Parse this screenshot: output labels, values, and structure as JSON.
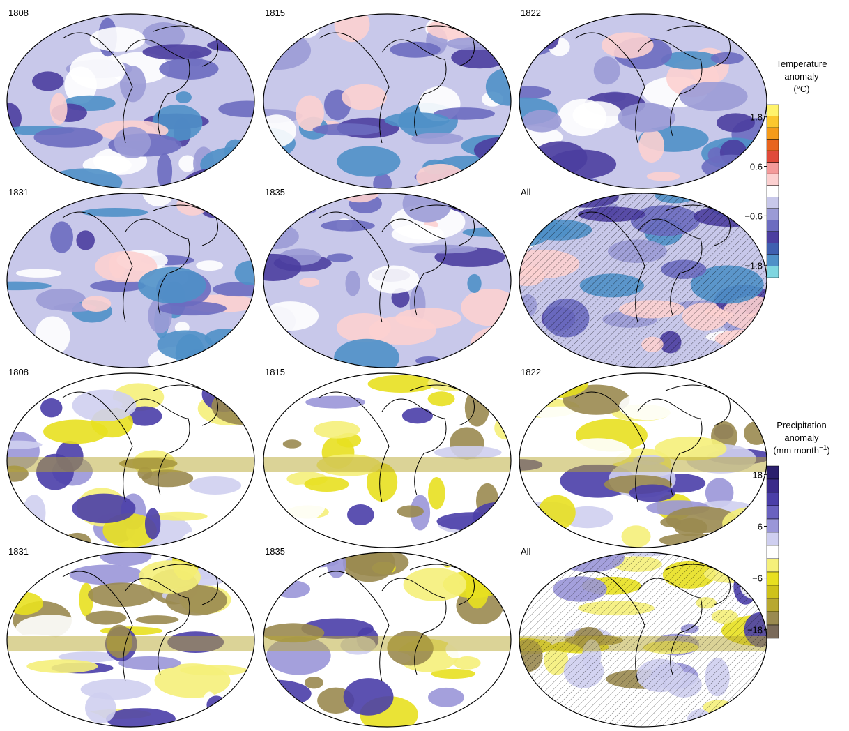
{
  "temperature_panels": [
    "1808",
    "1815",
    "1822",
    "1831",
    "1835",
    "All"
  ],
  "precipitation_panels": [
    "1808",
    "1815",
    "1822",
    "1831",
    "1835",
    "All"
  ],
  "temperature_colorbar": {
    "title": [
      "Temperature",
      "anomaly",
      "(°C)"
    ],
    "colors": [
      "#fff36b",
      "#fbc72d",
      "#f59b1a",
      "#e8641e",
      "#e04a3a",
      "#f49a9a",
      "#fcd0d0",
      "#ffffff",
      "#c8c8ea",
      "#9b9bd6",
      "#6c6cc0",
      "#4b3ea0",
      "#3f5fb0",
      "#4f90c8",
      "#7fd6e0"
    ],
    "lim": [
      -2.1,
      2.1
    ],
    "ticks": [
      1.8,
      0.6,
      {
        "value": -0.6,
        "label": "−0.6"
      },
      {
        "value": -1.8,
        "label": "−1.8"
      }
    ]
  },
  "precipitation_colorbar": {
    "title": [
      "Precipitation",
      "anomaly"
    ],
    "unit": [
      "(mm month",
      "−1",
      ")"
    ],
    "colors": [
      "#2b1f6e",
      "#3a2a8a",
      "#4a3ea8",
      "#6a62c0",
      "#9a96d8",
      "#cfcff0",
      "#ffffff",
      "#f5f07a",
      "#e8e020",
      "#cfc21a",
      "#b8a830",
      "#9a8a50",
      "#7a6a5a"
    ],
    "lim": [
      -20,
      20
    ],
    "ticks": [
      18,
      6,
      {
        "value": -6,
        "label": "−6"
      },
      {
        "value": -18,
        "label": "−18"
      }
    ]
  }
}
